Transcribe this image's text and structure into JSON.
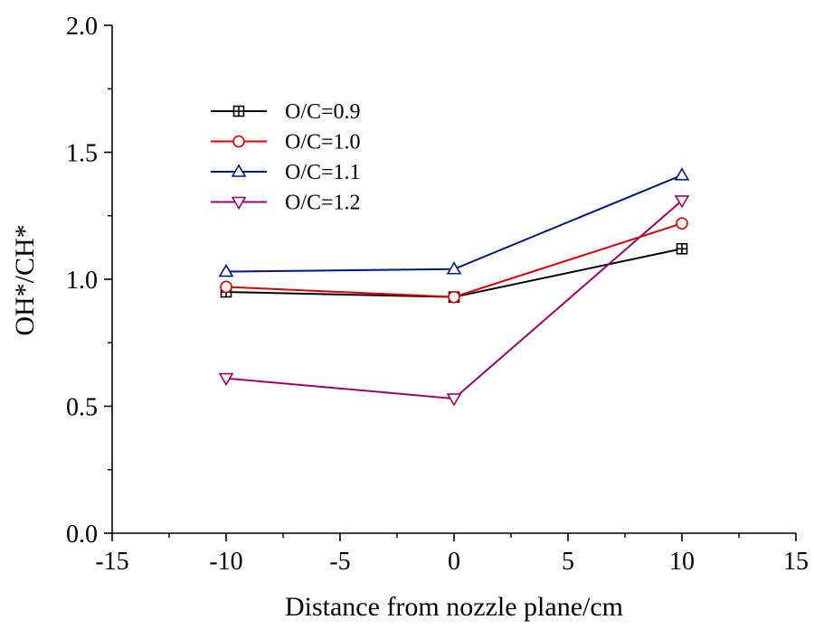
{
  "chart_data": {
    "type": "line",
    "xlabel": "Distance from nozzle plane/cm",
    "ylabel": "OH*/CH*",
    "xlim": [
      -15,
      15
    ],
    "ylim": [
      0.0,
      2.0
    ],
    "x_ticks": [
      "-15",
      "-10",
      "-5",
      "0",
      "5",
      "10",
      "15"
    ],
    "y_ticks": [
      "0.0",
      "0.5",
      "1.0",
      "1.5",
      "2.0"
    ],
    "grid": false,
    "legend_position": "top-left",
    "series": [
      {
        "name": "O/C=0.9",
        "color": "#000000",
        "marker": "square-plus",
        "x": [
          -10,
          0,
          10
        ],
        "y": [
          0.95,
          0.93,
          1.12
        ]
      },
      {
        "name": "O/C=1.0",
        "color": "#e00000",
        "marker": "circle",
        "x": [
          -10,
          0,
          10
        ],
        "y": [
          0.97,
          0.93,
          1.22
        ]
      },
      {
        "name": "O/C=1.1",
        "color": "#001a80",
        "marker": "triangle-up",
        "x": [
          -10,
          0,
          10
        ],
        "y": [
          1.03,
          1.04,
          1.41
        ]
      },
      {
        "name": "O/C=1.2",
        "color": "#a0006e",
        "marker": "triangle-down",
        "x": [
          -10,
          0,
          10
        ],
        "y": [
          0.61,
          0.53,
          1.31
        ]
      }
    ]
  }
}
